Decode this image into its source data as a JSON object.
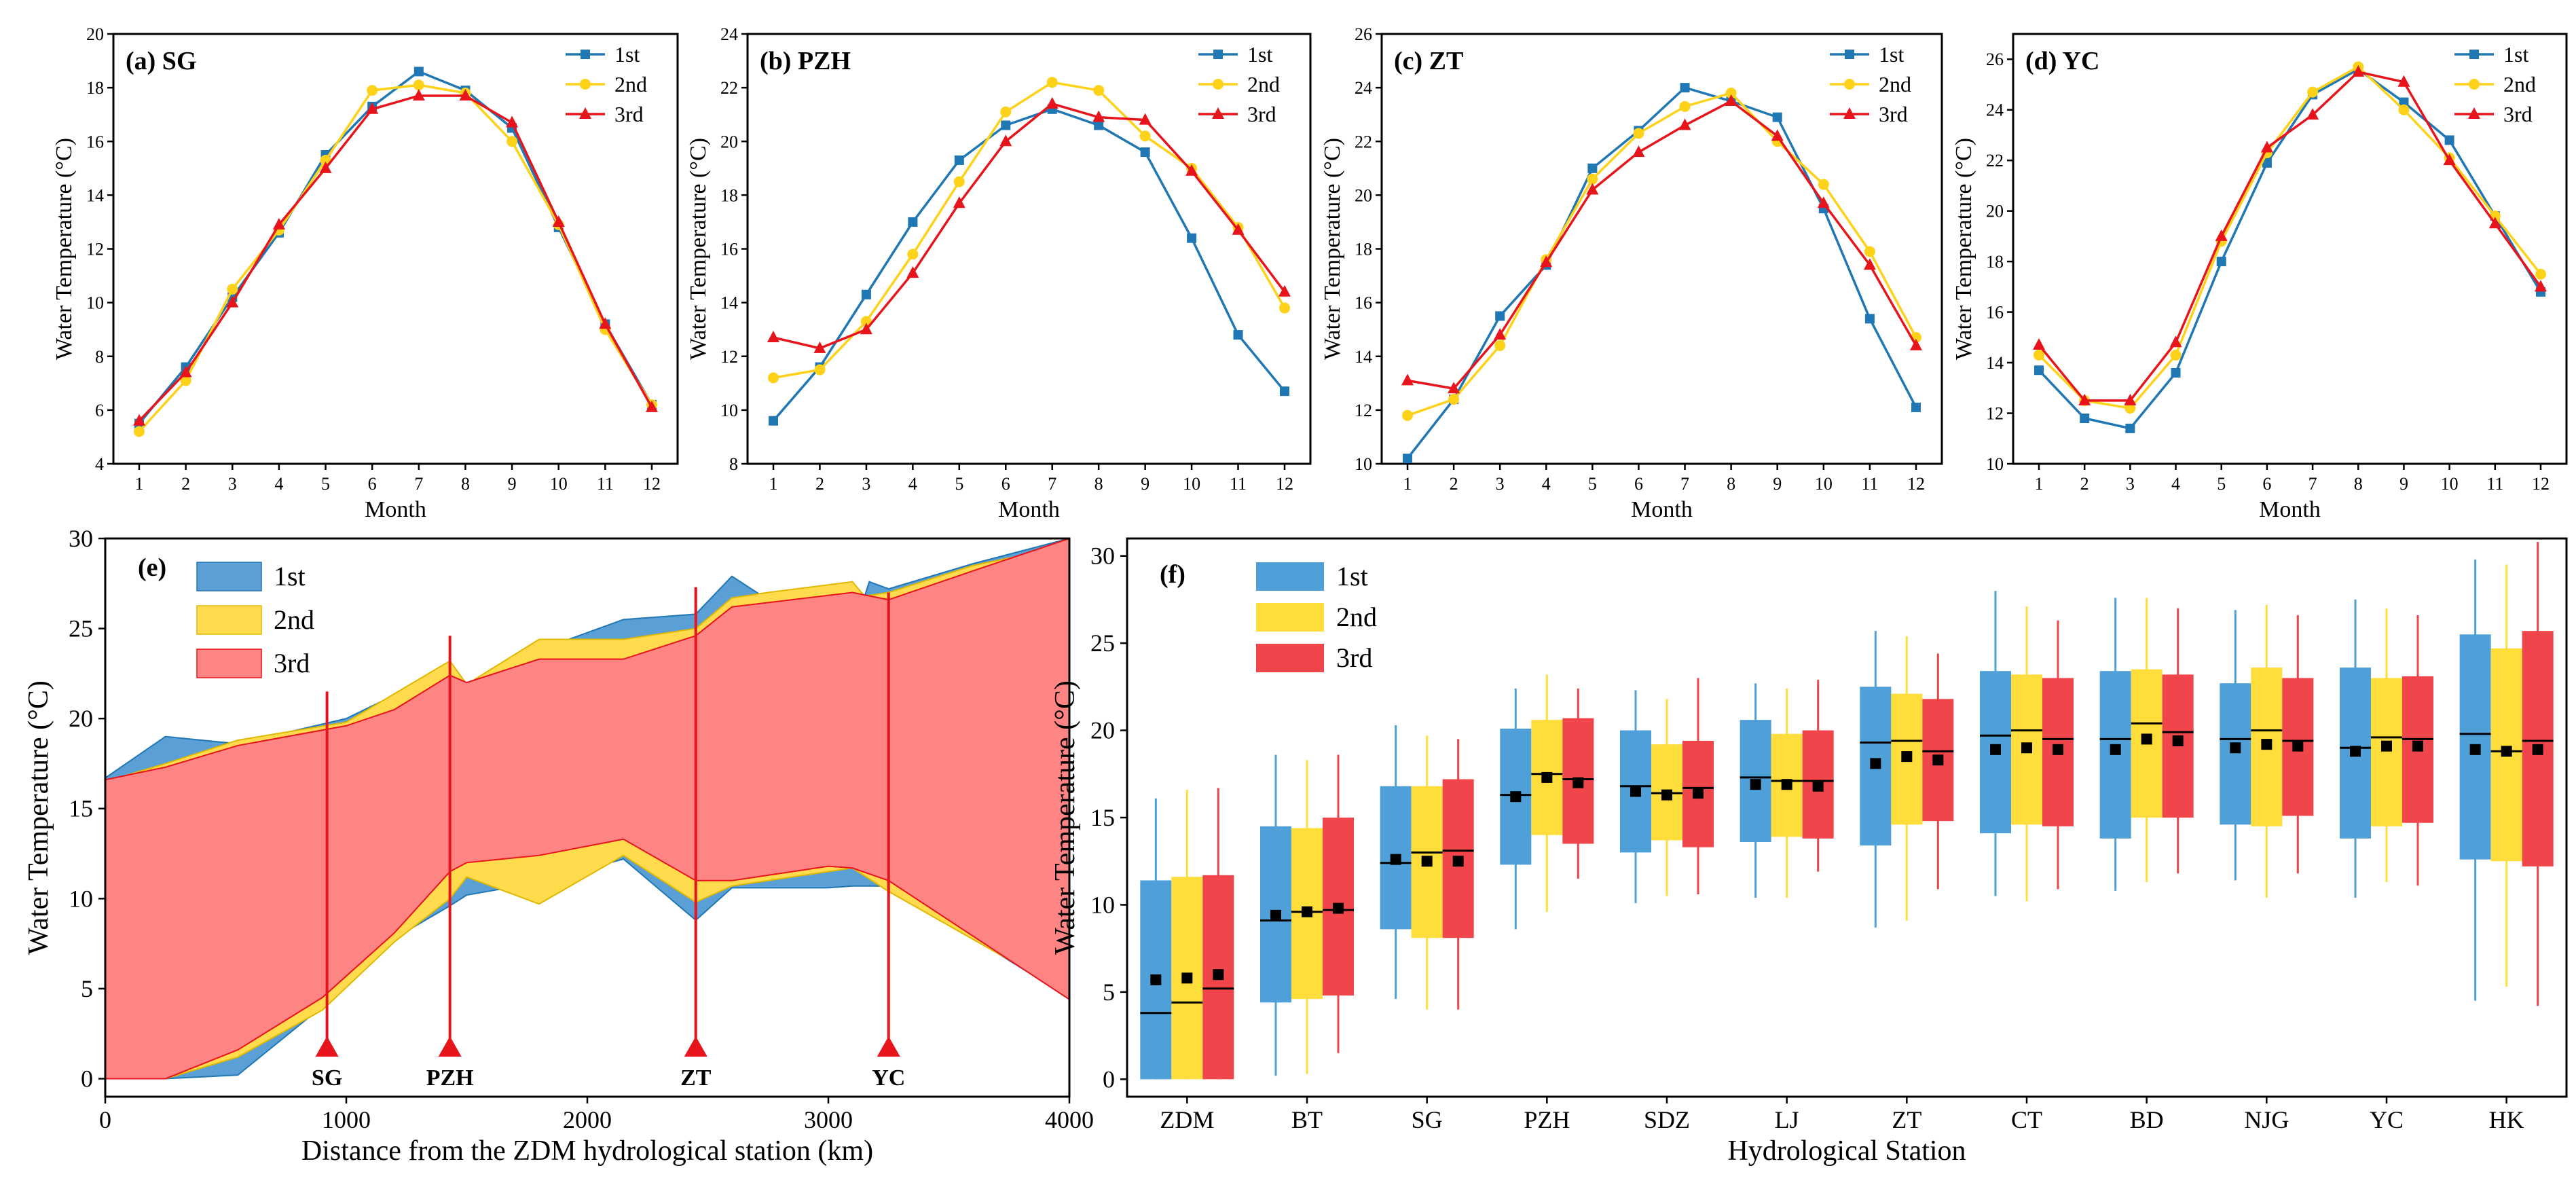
{
  "colors": {
    "c1": "#1f77b4",
    "c2": "#ffd21a",
    "c3": "#e8141b",
    "c1fill": "#5a9fd6",
    "c2fill": "#ffdb4d",
    "c3fill": "#ff8585",
    "c1box": "#4f9fd8",
    "c2box": "#ffde3b",
    "c3box": "#f0454a"
  },
  "chart_data": [
    {
      "id": "a",
      "type": "line",
      "title": "(a) SG",
      "xlabel": "Month",
      "ylabel": "Water Temperature (°C)",
      "ylim": [
        4,
        20
      ],
      "yticks": [
        4,
        6,
        8,
        10,
        12,
        14,
        16,
        18,
        20
      ],
      "x": [
        1,
        2,
        3,
        4,
        5,
        6,
        7,
        8,
        9,
        10,
        11,
        12
      ],
      "series": [
        {
          "name": "1st",
          "values": [
            5.5,
            7.6,
            10.2,
            12.6,
            15.5,
            17.3,
            18.6,
            17.9,
            16.5,
            12.8,
            9.2,
            6.2
          ]
        },
        {
          "name": "2nd",
          "values": [
            5.2,
            7.1,
            10.5,
            12.7,
            15.3,
            17.9,
            18.1,
            17.8,
            16.0,
            12.9,
            9.0,
            6.2
          ]
        },
        {
          "name": "3rd",
          "values": [
            5.6,
            7.4,
            10.0,
            12.9,
            15.0,
            17.2,
            17.7,
            17.7,
            16.7,
            13.0,
            9.2,
            6.1
          ]
        }
      ]
    },
    {
      "id": "b",
      "type": "line",
      "title": "(b) PZH",
      "xlabel": "Month",
      "ylabel": "Water Temperature (°C)",
      "ylim": [
        8,
        24
      ],
      "yticks": [
        8,
        10,
        12,
        14,
        16,
        18,
        20,
        22,
        24
      ],
      "x": [
        1,
        2,
        3,
        4,
        5,
        6,
        7,
        8,
        9,
        10,
        11,
        12
      ],
      "series": [
        {
          "name": "1st",
          "values": [
            9.6,
            11.6,
            14.3,
            17.0,
            19.3,
            20.6,
            21.2,
            20.6,
            19.6,
            16.4,
            12.8,
            10.7
          ]
        },
        {
          "name": "2nd",
          "values": [
            11.2,
            11.5,
            13.3,
            15.8,
            18.5,
            21.1,
            22.2,
            21.9,
            20.2,
            19.0,
            16.8,
            13.8
          ]
        },
        {
          "name": "3rd",
          "values": [
            12.7,
            12.3,
            13.0,
            15.1,
            17.7,
            20.0,
            21.4,
            20.9,
            20.8,
            18.9,
            16.7,
            14.4
          ]
        }
      ]
    },
    {
      "id": "c",
      "type": "line",
      "title": "(c) ZT",
      "xlabel": "Month",
      "ylabel": "Water Temperature (°C)",
      "ylim": [
        10,
        26
      ],
      "yticks": [
        10,
        12,
        14,
        16,
        18,
        20,
        22,
        24,
        26
      ],
      "x": [
        1,
        2,
        3,
        4,
        5,
        6,
        7,
        8,
        9,
        10,
        11,
        12
      ],
      "series": [
        {
          "name": "1st",
          "values": [
            10.2,
            12.4,
            15.5,
            17.4,
            21.0,
            22.4,
            24.0,
            23.5,
            22.9,
            19.5,
            15.4,
            12.1
          ]
        },
        {
          "name": "2nd",
          "values": [
            11.8,
            12.4,
            14.4,
            17.6,
            20.6,
            22.3,
            23.3,
            23.8,
            22.0,
            20.4,
            17.9,
            14.7
          ]
        },
        {
          "name": "3rd",
          "values": [
            13.1,
            12.8,
            14.8,
            17.5,
            20.2,
            21.6,
            22.6,
            23.5,
            22.2,
            19.7,
            17.4,
            14.4
          ]
        }
      ]
    },
    {
      "id": "d",
      "type": "line",
      "title": "(d) YC",
      "xlabel": "Month",
      "ylabel": "Water Temperature (°C)",
      "ylim": [
        10,
        27
      ],
      "yticks": [
        10,
        12,
        14,
        16,
        18,
        20,
        22,
        24,
        26
      ],
      "x": [
        1,
        2,
        3,
        4,
        5,
        6,
        7,
        8,
        9,
        10,
        11,
        12
      ],
      "series": [
        {
          "name": "1st",
          "values": [
            13.7,
            11.8,
            11.4,
            13.6,
            18.0,
            21.9,
            24.6,
            25.6,
            24.3,
            22.8,
            19.8,
            16.8
          ]
        },
        {
          "name": "2nd",
          "values": [
            14.3,
            12.5,
            12.2,
            14.3,
            18.8,
            22.3,
            24.7,
            25.7,
            24.0,
            22.1,
            19.8,
            17.5
          ]
        },
        {
          "name": "3rd",
          "values": [
            14.7,
            12.5,
            12.5,
            14.8,
            19.0,
            22.5,
            23.8,
            25.5,
            25.1,
            22.0,
            19.5,
            17.0
          ]
        }
      ]
    },
    {
      "id": "e",
      "type": "area",
      "title": "(e)",
      "xlabel": "Distance from the ZDM hydrological station (km)",
      "ylabel": "Water Temperature (°C)",
      "xlim": [
        0,
        4000
      ],
      "ylim": [
        -1,
        30
      ],
      "xticks": [
        0,
        1000,
        2000,
        3000,
        4000
      ],
      "yticks": [
        0,
        5,
        10,
        15,
        20,
        25,
        30
      ],
      "series": [
        {
          "name": "1st",
          "upper": [
            [
              0,
              16.7
            ],
            [
              250,
              19.0
            ],
            [
              550,
              18.6
            ],
            [
              1000,
              20.0
            ],
            [
              1430,
              22.8
            ],
            [
              1500,
              21.8
            ],
            [
              1800,
              23.8
            ],
            [
              2150,
              25.5
            ],
            [
              2450,
              25.8
            ],
            [
              2600,
              27.9
            ],
            [
              2750,
              26.6
            ],
            [
              3000,
              26.2
            ],
            [
              3100,
              24.7
            ],
            [
              3170,
              27.6
            ],
            [
              3250,
              27.2
            ],
            [
              3600,
              28.6
            ],
            [
              4000,
              30.0
            ]
          ],
          "lower": [
            [
              0,
              0
            ],
            [
              250,
              0
            ],
            [
              550,
              0.2
            ],
            [
              900,
              4.0
            ],
            [
              1200,
              7.8
            ],
            [
              1430,
              9.6
            ],
            [
              1500,
              10.2
            ],
            [
              1800,
              10.9
            ],
            [
              2150,
              12.2
            ],
            [
              2450,
              8.8
            ],
            [
              2600,
              10.6
            ],
            [
              3000,
              10.6
            ],
            [
              3100,
              10.7
            ],
            [
              3250,
              10.7
            ],
            [
              4000,
              4.5
            ]
          ]
        },
        {
          "name": "2nd",
          "upper": [
            [
              0,
              16.5
            ],
            [
              250,
              17.5
            ],
            [
              550,
              18.8
            ],
            [
              1000,
              19.8
            ],
            [
              1430,
              23.2
            ],
            [
              1500,
              21.9
            ],
            [
              1800,
              24.4
            ],
            [
              2150,
              24.4
            ],
            [
              2450,
              25.0
            ],
            [
              2600,
              26.7
            ],
            [
              2750,
              27.0
            ],
            [
              3100,
              27.6
            ],
            [
              3150,
              26.8
            ],
            [
              3250,
              27.0
            ],
            [
              3600,
              28.5
            ],
            [
              4000,
              29.6
            ]
          ],
          "lower": [
            [
              0,
              0
            ],
            [
              250,
              0
            ],
            [
              550,
              1.2
            ],
            [
              900,
              3.8
            ],
            [
              1200,
              7.6
            ],
            [
              1430,
              10.0
            ],
            [
              1500,
              11.2
            ],
            [
              1800,
              9.7
            ],
            [
              2150,
              12.4
            ],
            [
              2450,
              9.8
            ],
            [
              2600,
              10.7
            ],
            [
              3000,
              11.5
            ],
            [
              3100,
              11.7
            ],
            [
              3250,
              10.4
            ],
            [
              4000,
              4.7
            ]
          ]
        },
        {
          "name": "3rd",
          "upper": [
            [
              0,
              16.6
            ],
            [
              250,
              17.3
            ],
            [
              550,
              18.5
            ],
            [
              1000,
              19.6
            ],
            [
              1200,
              20.5
            ],
            [
              1430,
              22.4
            ],
            [
              1500,
              22.0
            ],
            [
              1800,
              23.3
            ],
            [
              2150,
              23.3
            ],
            [
              2450,
              24.6
            ],
            [
              2600,
              26.2
            ],
            [
              3100,
              27.0
            ],
            [
              3250,
              26.6
            ],
            [
              3600,
              28.2
            ],
            [
              4000,
              30.0
            ]
          ],
          "lower": [
            [
              0,
              0
            ],
            [
              250,
              0
            ],
            [
              550,
              1.6
            ],
            [
              900,
              4.5
            ],
            [
              1200,
              8.1
            ],
            [
              1430,
              11.5
            ],
            [
              1500,
              12.0
            ],
            [
              1800,
              12.4
            ],
            [
              2150,
              13.3
            ],
            [
              2450,
              11.0
            ],
            [
              2600,
              11.0
            ],
            [
              3000,
              11.8
            ],
            [
              3100,
              11.7
            ],
            [
              3250,
              11.0
            ],
            [
              4000,
              4.4
            ]
          ]
        }
      ],
      "stations": [
        {
          "name": "SG",
          "x": 920,
          "top": 21.5
        },
        {
          "name": "PZH",
          "x": 1430,
          "top": 24.6
        },
        {
          "name": "ZT",
          "x": 2450,
          "top": 27.3
        },
        {
          "name": "YC",
          "x": 3250,
          "top": 27.0
        }
      ]
    },
    {
      "id": "f",
      "type": "box",
      "title": "(f)",
      "xlabel": "Hydrological Station",
      "ylabel": "Water Temperature (°C)",
      "ylim": [
        -1,
        31
      ],
      "yticks": [
        0,
        5,
        10,
        15,
        20,
        25,
        30
      ],
      "categories": [
        "ZDM",
        "BT",
        "SG",
        "PZH",
        "SDZ",
        "LJ",
        "ZT",
        "CT",
        "BD",
        "NJG",
        "YC",
        "HK"
      ],
      "series": [
        {
          "name": "1st",
          "boxes": [
            [
              0.0,
              0.0,
              3.8,
              11.4,
              16.1,
              5.7
            ],
            [
              0.2,
              4.4,
              9.1,
              14.5,
              18.6,
              9.4
            ],
            [
              4.6,
              8.6,
              12.4,
              16.8,
              20.3,
              12.6
            ],
            [
              8.6,
              12.3,
              16.3,
              20.1,
              22.4,
              16.2
            ],
            [
              10.1,
              13.0,
              16.8,
              20.0,
              22.3,
              16.5
            ],
            [
              10.4,
              13.6,
              17.3,
              20.6,
              22.7,
              16.9
            ],
            [
              8.7,
              13.4,
              19.3,
              22.5,
              25.7,
              18.1
            ],
            [
              10.5,
              14.1,
              19.7,
              23.4,
              28.0,
              18.9
            ],
            [
              10.8,
              13.8,
              19.5,
              23.4,
              27.6,
              18.9
            ],
            [
              11.4,
              14.6,
              19.5,
              22.7,
              26.9,
              19.0
            ],
            [
              10.4,
              13.8,
              19.0,
              23.6,
              27.5,
              18.8
            ],
            [
              4.5,
              12.6,
              19.8,
              25.5,
              29.8,
              18.9
            ]
          ]
        },
        {
          "name": "2nd",
          "boxes": [
            [
              0.0,
              0.0,
              4.4,
              11.6,
              16.6,
              5.8
            ],
            [
              0.3,
              4.6,
              9.6,
              14.4,
              18.3,
              9.6
            ],
            [
              4.0,
              8.1,
              13.0,
              16.8,
              19.7,
              12.5
            ],
            [
              9.6,
              14.0,
              17.5,
              20.6,
              23.2,
              17.3
            ],
            [
              10.5,
              13.7,
              16.4,
              19.2,
              21.8,
              16.3
            ],
            [
              10.4,
              13.9,
              17.1,
              19.8,
              22.4,
              16.9
            ],
            [
              9.1,
              14.6,
              19.4,
              22.1,
              25.4,
              18.5
            ],
            [
              10.2,
              14.6,
              20.0,
              23.2,
              27.1,
              19.0
            ],
            [
              11.3,
              15.0,
              20.4,
              23.5,
              27.6,
              19.5
            ],
            [
              10.4,
              14.5,
              20.0,
              23.6,
              27.2,
              19.2
            ],
            [
              11.3,
              14.5,
              19.6,
              23.0,
              27.0,
              19.1
            ],
            [
              5.3,
              12.5,
              18.8,
              24.7,
              29.5,
              18.8
            ]
          ]
        },
        {
          "name": "3rd",
          "boxes": [
            [
              0.0,
              0.0,
              5.2,
              11.7,
              16.7,
              6.0
            ],
            [
              1.5,
              4.8,
              9.7,
              15.0,
              18.6,
              9.8
            ],
            [
              4.0,
              8.1,
              13.1,
              17.2,
              19.5,
              12.5
            ],
            [
              11.5,
              13.5,
              17.2,
              20.7,
              22.4,
              17.0
            ],
            [
              10.6,
              13.3,
              16.7,
              19.4,
              23.0,
              16.4
            ],
            [
              11.9,
              13.8,
              17.1,
              20.0,
              22.9,
              16.8
            ],
            [
              10.9,
              14.8,
              18.8,
              21.8,
              24.4,
              18.3
            ],
            [
              10.9,
              14.5,
              19.5,
              23.0,
              26.3,
              18.9
            ],
            [
              11.8,
              15.0,
              19.9,
              23.2,
              27.0,
              19.4
            ],
            [
              11.8,
              15.1,
              19.4,
              23.0,
              26.6,
              19.1
            ],
            [
              11.1,
              14.7,
              19.5,
              23.1,
              26.6,
              19.1
            ],
            [
              4.2,
              12.2,
              19.4,
              25.7,
              30.8,
              18.9
            ]
          ]
        }
      ]
    }
  ]
}
